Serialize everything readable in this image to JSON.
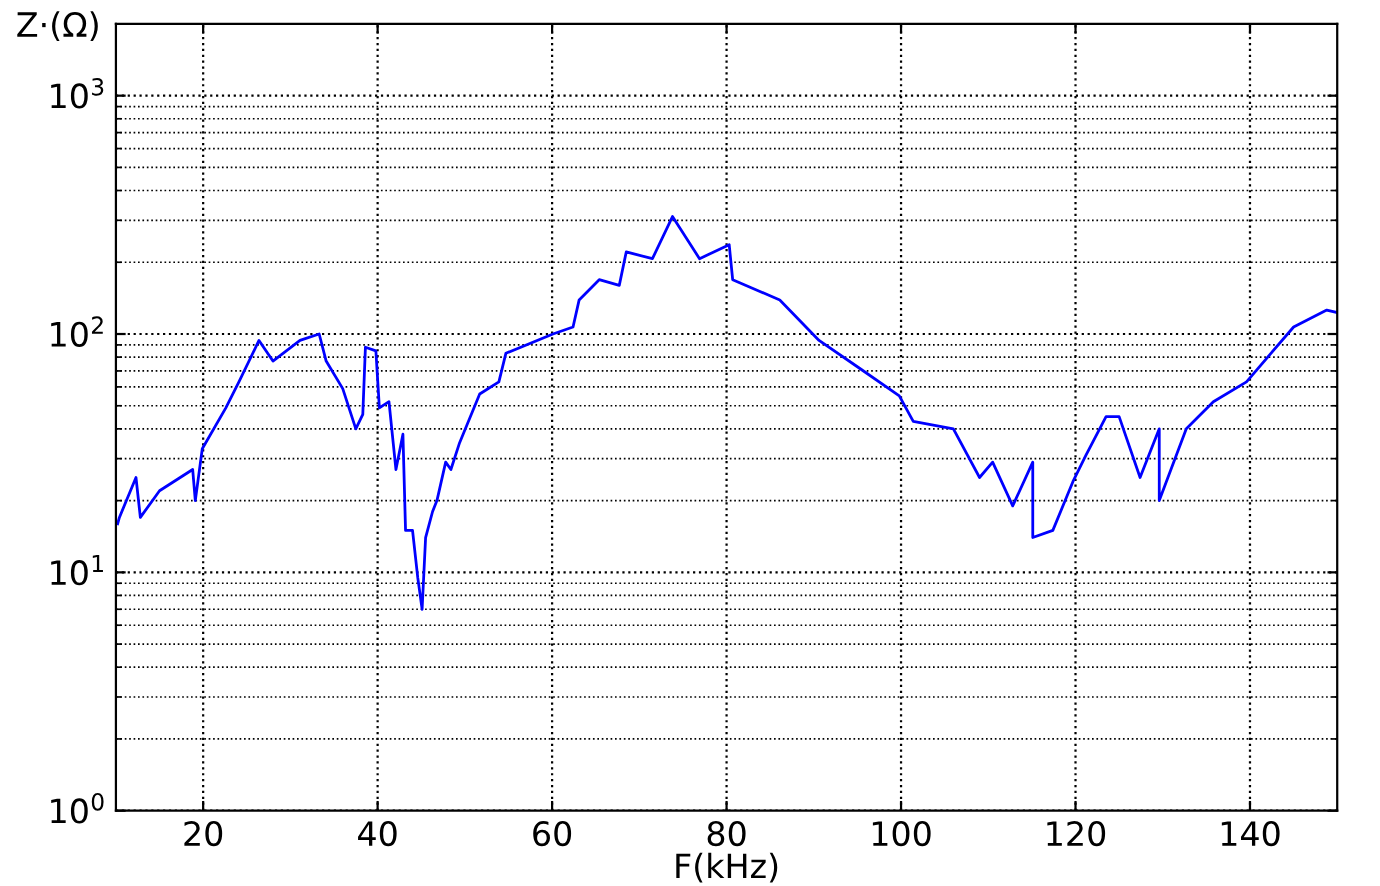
{
  "chart_data": {
    "type": "line",
    "xlabel": "F(kHz)",
    "ylabel": "Z·(Ω)",
    "series": [
      {
        "color": "#0000ff",
        "x": [
          10.2,
          10.4,
          12.3,
          12.8,
          15.0,
          18.8,
          19.1,
          19.9,
          22.6,
          24.1,
          26.4,
          28.0,
          31.1,
          33.3,
          34.1,
          36.0,
          37.5,
          38.3,
          38.6,
          39.8,
          40.2,
          41.3,
          42.1,
          42.9,
          43.2,
          44.0,
          44.6,
          45.1,
          45.5,
          46.3,
          46.8,
          47.8,
          48.4,
          49.4,
          51.7,
          53.9,
          54.7,
          60.1,
          62.4,
          63.1,
          65.4,
          67.7,
          68.5,
          71.5,
          73.8,
          76.9,
          80.3,
          80.7,
          86.1,
          90.6,
          95.2,
          99.8,
          101.4,
          106.0,
          109.0,
          110.5,
          112.8,
          115.1,
          115.1,
          117.4,
          119.7,
          121.2,
          123.5,
          125.0,
          127.4,
          129.6,
          129.6,
          132.7,
          135.8,
          139.6,
          145.0,
          148.8,
          150
        ],
        "values": [
          16,
          17,
          25,
          17,
          22,
          27,
          20,
          33,
          49,
          63,
          94,
          77,
          94,
          100,
          77,
          59,
          40,
          46,
          88,
          85,
          49,
          52,
          27,
          38,
          15,
          15,
          9.5,
          7.0,
          14,
          18,
          20,
          29,
          27,
          35,
          56,
          63,
          83,
          100,
          107,
          139,
          169,
          160,
          221,
          207,
          311,
          207,
          237,
          169,
          139,
          94,
          72,
          55,
          43,
          40,
          25,
          29,
          19,
          29,
          14,
          15,
          24,
          31,
          45,
          45,
          25,
          40,
          20,
          40,
          52,
          63,
          107,
          126,
          123
        ]
      }
    ],
    "log": "y",
    "xlim": [
      10,
      150
    ],
    "ylim": [
      1,
      2000
    ],
    "xticks": [
      20,
      40,
      60,
      80,
      100,
      120,
      140
    ],
    "yticks": [
      {
        "value": 1,
        "label": "10$^{0}$"
      },
      {
        "value": 10,
        "label": "10$^{1}$"
      },
      {
        "value": 100,
        "label": "10$^{2}$"
      },
      {
        "value": 1000,
        "label": "10$^{3}$"
      }
    ],
    "grid": true,
    "line_style": "solid",
    "marker": "none"
  }
}
